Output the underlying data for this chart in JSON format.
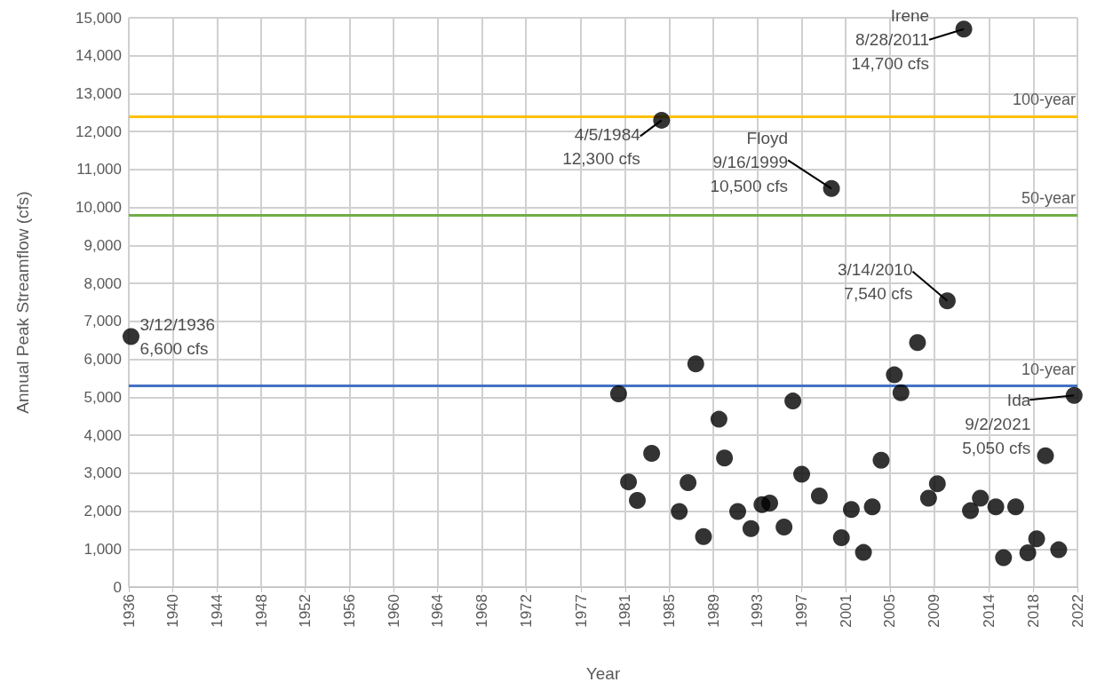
{
  "chart_data": {
    "type": "scatter",
    "xlabel": "Year",
    "ylabel": "Annual Peak Streamflow (cfs)",
    "x": [
      1936.2,
      1980.4,
      1981.3,
      1982.1,
      1983.4,
      1984.3,
      1985.9,
      1986.7,
      1987.4,
      1988.1,
      1989.5,
      1990.0,
      1991.2,
      1992.4,
      1993.4,
      1994.1,
      1995.4,
      1996.2,
      1997.0,
      1998.6,
      1999.7,
      2000.6,
      2001.5,
      2002.6,
      2003.4,
      2004.2,
      2005.4,
      2006.0,
      2007.5,
      2008.5,
      2009.3,
      2010.2,
      2011.7,
      2012.3,
      2013.2,
      2014.6,
      2015.3,
      2016.4,
      2017.5,
      2018.3,
      2019.1,
      2020.3,
      2021.7
    ],
    "series": [
      {
        "color": "#000000",
        "values": [
          6600,
          5090,
          2770,
          2280,
          3520,
          12300,
          1990,
          2750,
          5880,
          1330,
          4420,
          3400,
          1990,
          1540,
          2170,
          2210,
          1580,
          4900,
          2970,
          2400,
          10500,
          1300,
          2040,
          910,
          2110,
          3340,
          5590,
          5120,
          6440,
          2340,
          2720,
          7540,
          14700,
          2010,
          2340,
          2110,
          770,
          2110,
          900,
          1270,
          3460,
          980,
          5050
        ]
      }
    ],
    "marker": "circle",
    "grid": true,
    "xlim": [
      1936,
      2022
    ],
    "xticks": [
      1936,
      1940,
      1944,
      1948,
      1952,
      1956,
      1960,
      1964,
      1968,
      1972,
      1977,
      1981,
      1985,
      1989,
      1993,
      1997,
      2001,
      2005,
      2009,
      2014,
      2018,
      2022
    ],
    "ylim": [
      0,
      15000
    ],
    "yticks": [
      0,
      {
        "value": 1000,
        "label": "1,000"
      },
      {
        "value": 2000,
        "label": "2,000"
      },
      {
        "value": 3000,
        "label": "3,000"
      },
      {
        "value": 4000,
        "label": "4,000"
      },
      {
        "value": 5000,
        "label": "5,000"
      },
      {
        "value": 6000,
        "label": "6,000"
      },
      {
        "value": 7000,
        "label": "7,000"
      },
      {
        "value": 8000,
        "label": "8,000"
      },
      {
        "value": 9000,
        "label": "9,000"
      },
      {
        "value": 10000,
        "label": "10,000"
      },
      {
        "value": 11000,
        "label": "11,000"
      },
      {
        "value": 12000,
        "label": "12,000"
      },
      {
        "value": 13000,
        "label": "13,000"
      },
      {
        "value": 14000,
        "label": "14,000"
      },
      {
        "value": 15000,
        "label": "15,000"
      }
    ],
    "ref_lines": [
      {
        "axis": "y",
        "value": 12400,
        "label": "100-year",
        "color": "#ffc000"
      },
      {
        "axis": "y",
        "value": 9800,
        "label": "50-year",
        "color": "#70ad47"
      },
      {
        "axis": "y",
        "value": 5300,
        "label": "10-year",
        "color": "#4472c4"
      }
    ],
    "annotations": [
      {
        "text": "3/12/1936\n6,600 cfs",
        "x": 1936.2,
        "y": 6600
      },
      {
        "text": "4/5/1984\n12,300 cfs",
        "x": 1984.3,
        "y": 12300
      },
      {
        "text": "Floyd\n9/16/1999\n10,500 cfs",
        "x": 1999.7,
        "y": 10500
      },
      {
        "text": "Irene\n8/28/2011\n14,700 cfs",
        "x": 2011.7,
        "y": 14700
      },
      {
        "text": "3/14/2010\n7,540 cfs",
        "x": 2010.2,
        "y": 7540
      },
      {
        "text": "Ida\n9/2/2021\n5,050 cfs",
        "x": 2021.7,
        "y": 5050
      }
    ]
  }
}
